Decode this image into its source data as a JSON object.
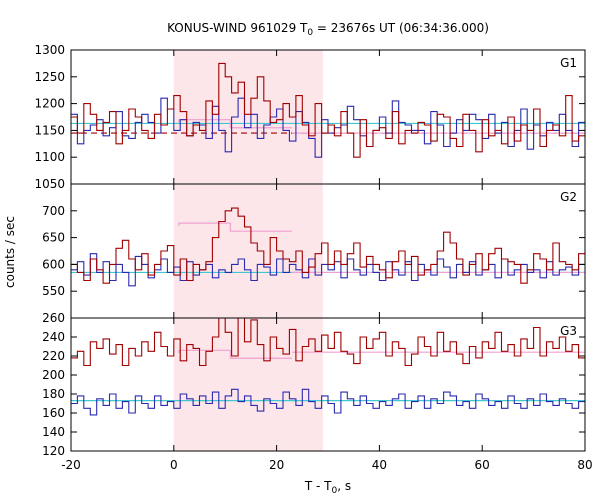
{
  "chart_data": {
    "type": "line",
    "title": {
      "prefix": "KONUS-WIND 961029 T",
      "sub": "0",
      "suffix": " = 23676s UT (06:34:36.000)"
    },
    "xlabel": {
      "main": "T - T",
      "sub": "0",
      "suffix": ", s"
    },
    "ylabel": "counts / sec",
    "xlim": [
      -20,
      80
    ],
    "xticks": [
      -20,
      0,
      20,
      40,
      60,
      80
    ],
    "shaded_interval": [
      0,
      29
    ],
    "colors": {
      "red": "#a00000",
      "blue": "#2a2ab0",
      "cyan": "#40c8d0",
      "pink": "#f0a0d0",
      "shade": "#fde6ea"
    },
    "panels": [
      {
        "label": "G1",
        "ylim": [
          1050,
          1300
        ],
        "yticks": [
          1050,
          1100,
          1150,
          1200,
          1250,
          1300
        ],
        "background_red": 1145,
        "background_blue": 1163,
        "interval_avg_red": 1170,
        "interval_avg_blue": 1190,
        "red": [
          1175,
          1145,
          1200,
          1180,
          1150,
          1165,
          1185,
          1125,
          1150,
          1190,
          1175,
          1150,
          1135,
          1180,
          1160,
          1190,
          1215,
          1185,
          1140,
          1160,
          1150,
          1205,
          1180,
          1275,
          1250,
          1220,
          1240,
          1180,
          1210,
          1250,
          1205,
          1165,
          1170,
          1200,
          1175,
          1215,
          1160,
          1140,
          1200,
          1145,
          1160,
          1140,
          1185,
          1145,
          1100,
          1170,
          1120,
          1150,
          1155,
          1135,
          1185,
          1125,
          1150,
          1145,
          1165,
          1160,
          1130,
          1180,
          1175,
          1135,
          1120,
          1180,
          1150,
          1110,
          1170,
          1140,
          1150,
          1125,
          1175,
          1130,
          1160,
          1150,
          1190,
          1120,
          1150,
          1160,
          1140,
          1215,
          1130,
          1140
        ],
        "blue": [
          1180,
          1125,
          1150,
          1160,
          1170,
          1140,
          1155,
          1185,
          1140,
          1135,
          1165,
          1180,
          1165,
          1145,
          1210,
          1190,
          1150,
          1170,
          1140,
          1165,
          1160,
          1135,
          1195,
          1150,
          1110,
          1175,
          1210,
          1155,
          1180,
          1135,
          1160,
          1175,
          1190,
          1150,
          1130,
          1185,
          1165,
          1135,
          1100,
          1170,
          1145,
          1155,
          1160,
          1195,
          1170,
          1140,
          1120,
          1150,
          1175,
          1145,
          1205,
          1165,
          1160,
          1150,
          1150,
          1125,
          1185,
          1160,
          1120,
          1145,
          1170,
          1150,
          1180,
          1170,
          1135,
          1180,
          1145,
          1165,
          1120,
          1150,
          1190,
          1115,
          1160,
          1140,
          1165,
          1150,
          1180,
          1150,
          1120,
          1165
        ]
      },
      {
        "label": "G2",
        "ylim": [
          500,
          750
        ],
        "yticks": [
          550,
          600,
          650,
          700
        ],
        "background_red": 585,
        "background_blue": 585,
        "interval_avg_red": 677,
        "interval_avg_blue": 600,
        "red": [
          600,
          585,
          570,
          610,
          590,
          565,
          600,
          630,
          645,
          610,
          590,
          620,
          580,
          600,
          625,
          635,
          580,
          610,
          570,
          600,
          590,
          605,
          650,
          680,
          700,
          705,
          690,
          670,
          640,
          625,
          600,
          650,
          625,
          610,
          605,
          625,
          585,
          595,
          620,
          640,
          600,
          625,
          600,
          620,
          640,
          595,
          615,
          600,
          590,
          575,
          605,
          625,
          600,
          615,
          580,
          590,
          600,
          625,
          660,
          640,
          610,
          580,
          600,
          620,
          590,
          620,
          630,
          610,
          605,
          600,
          565,
          590,
          620,
          610,
          590,
          640,
          605,
          600,
          590,
          620
        ],
        "blue": [
          590,
          605,
          580,
          620,
          585,
          605,
          570,
          600,
          585,
          560,
          615,
          600,
          575,
          590,
          610,
          585,
          595,
          570,
          605,
          580,
          590,
          600,
          575,
          590,
          585,
          600,
          610,
          590,
          570,
          600,
          595,
          580,
          610,
          585,
          600,
          590,
          575,
          610,
          580,
          600,
          590,
          605,
          575,
          610,
          590,
          580,
          600,
          585,
          570,
          605,
          590,
          580,
          605,
          570,
          600,
          590,
          580,
          610,
          595,
          575,
          600,
          585,
          605,
          580,
          590,
          600,
          575,
          610,
          580,
          590,
          600,
          585,
          590,
          575,
          605,
          580,
          590,
          595,
          580,
          600
        ]
      },
      {
        "label": "G3",
        "ylim": [
          120,
          260
        ],
        "yticks": [
          120,
          140,
          160,
          180,
          200,
          220,
          240,
          260
        ],
        "background_red": 224,
        "background_blue": 173,
        "interval_avg_red": 226,
        "interval_avg_blue": 176,
        "red": [
          218,
          225,
          210,
          235,
          228,
          238,
          222,
          232,
          210,
          228,
          220,
          235,
          225,
          245,
          230,
          220,
          238,
          215,
          232,
          228,
          210,
          225,
          240,
          268,
          245,
          220,
          262,
          235,
          258,
          232,
          215,
          240,
          228,
          222,
          248,
          215,
          230,
          238,
          225,
          242,
          228,
          245,
          225,
          222,
          212,
          240,
          228,
          238,
          245,
          220,
          235,
          228,
          210,
          222,
          240,
          230,
          220,
          245,
          225,
          235,
          222,
          212,
          230,
          218,
          235,
          228,
          245,
          225,
          232,
          220,
          238,
          228,
          250,
          220,
          235,
          228,
          240,
          225,
          232,
          218
        ],
        "blue": [
          170,
          178,
          165,
          158,
          175,
          168,
          180,
          165,
          172,
          160,
          178,
          170,
          165,
          178,
          168,
          172,
          165,
          180,
          175,
          168,
          178,
          170,
          182,
          165,
          178,
          185,
          172,
          178,
          168,
          162,
          175,
          170,
          165,
          182,
          175,
          168,
          185,
          172,
          165,
          178,
          170,
          160,
          182,
          175,
          168,
          178,
          170,
          165,
          172,
          168,
          175,
          180,
          165,
          172,
          178,
          165,
          175,
          170,
          182,
          178,
          168,
          172,
          165,
          180,
          175,
          168,
          172,
          165,
          178,
          170,
          165,
          175,
          168,
          180,
          172,
          168,
          175,
          170,
          165,
          172
        ]
      }
    ]
  }
}
